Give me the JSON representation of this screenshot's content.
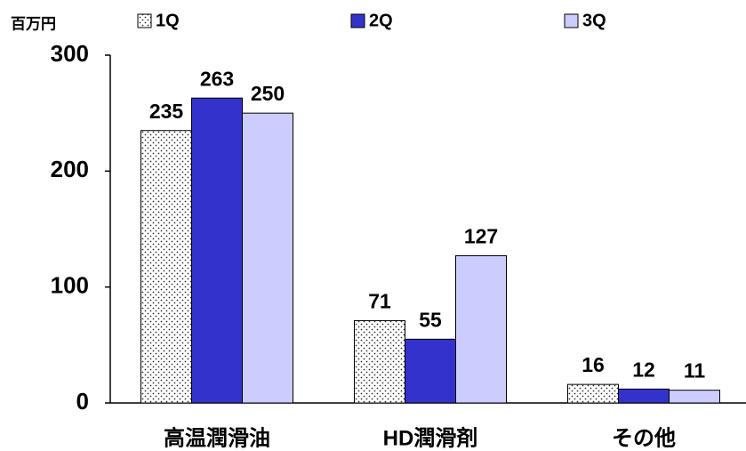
{
  "chart_data": {
    "type": "bar",
    "ylabel": "百万円",
    "categories": [
      "高温潤滑油",
      "HD潤滑剤",
      "その他"
    ],
    "series": [
      {
        "name": "1Q",
        "color": "#ffffff",
        "pattern": "dots",
        "values": [
          235,
          71,
          16
        ]
      },
      {
        "name": "2Q",
        "color": "#3333cc",
        "values": [
          263,
          55,
          12
        ]
      },
      {
        "name": "3Q",
        "color": "#ccccff",
        "values": [
          250,
          127,
          11
        ]
      }
    ],
    "ylim": [
      0,
      300
    ],
    "yticks": [
      0,
      100,
      200,
      300
    ],
    "grid": false,
    "legend": "top"
  }
}
